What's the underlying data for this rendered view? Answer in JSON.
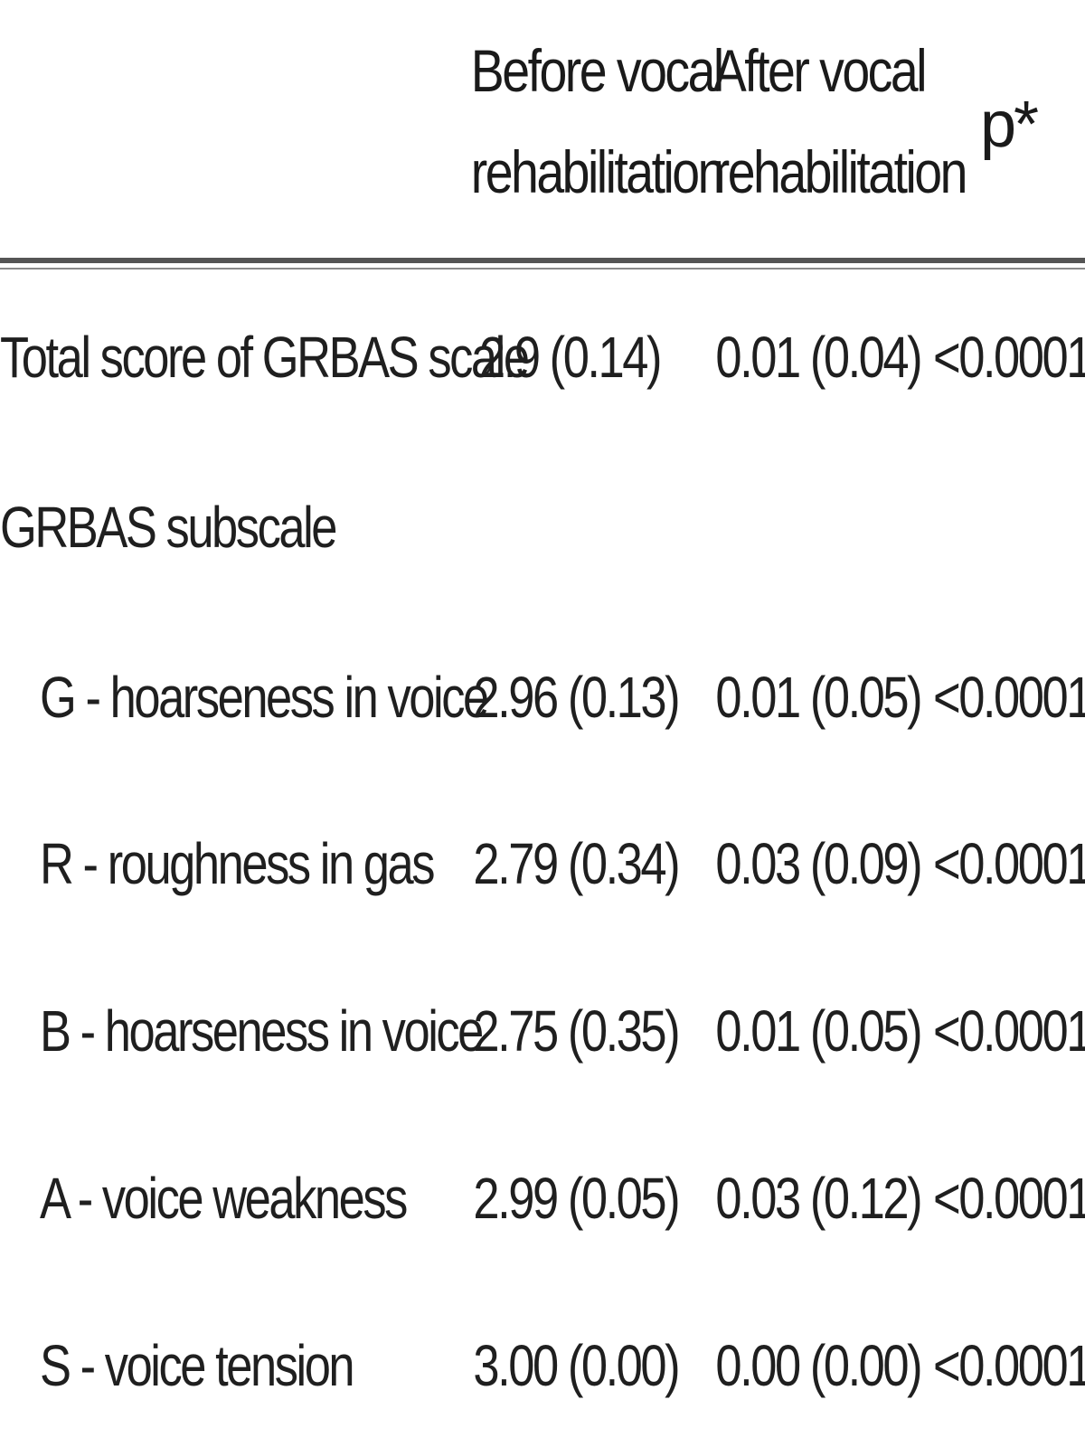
{
  "table": {
    "headers": {
      "before_line1": "Before vocal",
      "before_line2": "rehabilitation",
      "after_line1": "After vocal",
      "after_line2": "rehabilitation",
      "p": "p*"
    },
    "rows": [
      {
        "label": "Total score of GRBAS scale",
        "before": "2.9 (0.14)",
        "after": "0.01 (0.04)",
        "p": "<0.0001"
      },
      {
        "label": "GRBAS subscale",
        "before": "",
        "after": "",
        "p": ""
      },
      {
        "label": "G - hoarseness in voice",
        "before": "2.96 (0.13)",
        "after": "0.01 (0.05)",
        "p": "<0.0001"
      },
      {
        "label": "R - roughness in gas",
        "before": "2.79 (0.34)",
        "after": "0.03 (0.09)",
        "p": "<0.0001"
      },
      {
        "label": "B - hoarseness in voice",
        "before": "2.75 (0.35)",
        "after": "0.01 (0.05)",
        "p": "<0.0001"
      },
      {
        "label": "A - voice weakness",
        "before": "2.99 (0.05)",
        "after": "0.03 (0.12)",
        "p": "<0.0001"
      },
      {
        "label": "S - voice tension",
        "before": "3.00 (0.00)",
        "after": "0.00 (0.00)",
        "p": "<0.0001"
      }
    ]
  }
}
